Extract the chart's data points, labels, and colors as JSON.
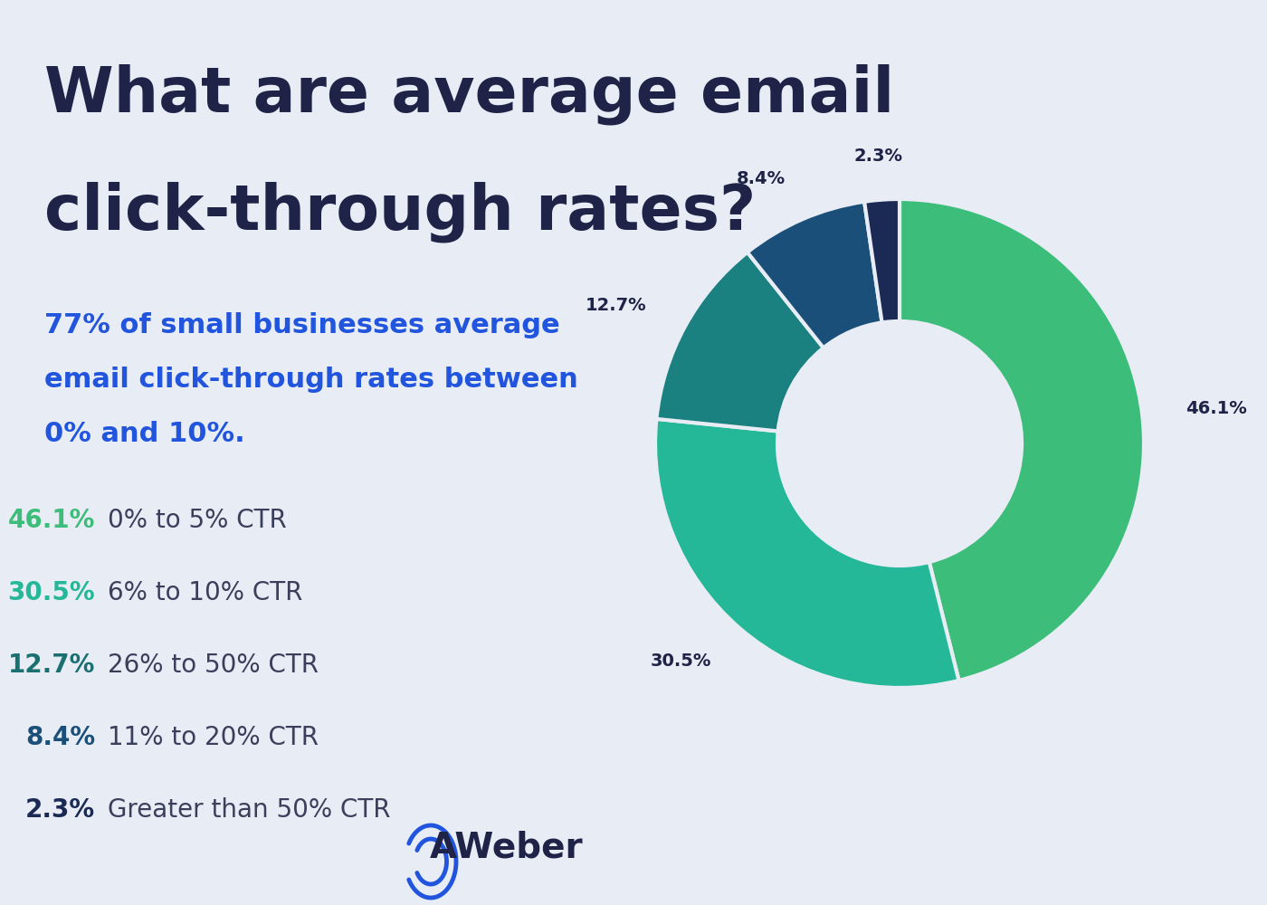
{
  "title_line1": "What are average email",
  "title_line2": "click-through rates?",
  "subtitle_line1": "77% of small businesses average",
  "subtitle_line2": "email click-through rates between",
  "subtitle_line3": "0% and 10%.",
  "background_color": "#e8edf5",
  "title_color": "#1e2347",
  "subtitle_color": "#2255dd",
  "slices": [
    {
      "label": "0% to 5% CTR",
      "value": 46.1,
      "color": "#3dbd7a",
      "pct_color": "#3dbd7a"
    },
    {
      "label": "6% to 10% CTR",
      "value": 30.5,
      "color": "#25b898",
      "pct_color": "#25b898"
    },
    {
      "label": "26% to 50% CTR",
      "value": 12.7,
      "color": "#1a8080",
      "pct_color": "#1a7070"
    },
    {
      "label": "11% to 20% CTR",
      "value": 8.4,
      "color": "#1a4f7a",
      "pct_color": "#1a4f7a"
    },
    {
      "label": "Greater than 50% CTR",
      "value": 2.3,
      "color": "#1a2a55",
      "pct_color": "#1a2a55"
    }
  ],
  "legend_label_color": "#3a3f5c",
  "aweber_color": "#1e2347",
  "aweber_icon_color": "#2255dd"
}
